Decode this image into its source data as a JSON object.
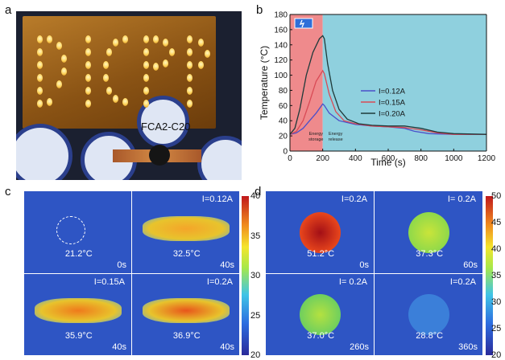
{
  "panels": {
    "a": {
      "letter": "a",
      "label": "FCA2-C20"
    },
    "b": {
      "letter": "b"
    },
    "c": {
      "letter": "c"
    },
    "d": {
      "letter": "d"
    }
  },
  "chart_data": {
    "type": "line",
    "xlabel": "Time (s)",
    "ylabel": "Temperature (°C)",
    "xlim": [
      0,
      1200
    ],
    "ylim": [
      0,
      180
    ],
    "xticks": [
      0,
      200,
      400,
      600,
      800,
      1000,
      1200
    ],
    "yticks": [
      0,
      20,
      40,
      60,
      80,
      100,
      120,
      140,
      160,
      180
    ],
    "regions": [
      {
        "label": "Energy storage",
        "x": [
          0,
          200
        ],
        "color": "#ef8a8c"
      },
      {
        "label": "Energy release",
        "x": [
          200,
          1200
        ],
        "color": "#8fd0de"
      }
    ],
    "series": [
      {
        "name": "I=0.12A",
        "color": "#4b4fc9",
        "points": [
          [
            0,
            22
          ],
          [
            40,
            24
          ],
          [
            80,
            30
          ],
          [
            120,
            40
          ],
          [
            160,
            50
          ],
          [
            200,
            62
          ],
          [
            210,
            60
          ],
          [
            240,
            50
          ],
          [
            300,
            40
          ],
          [
            400,
            35
          ],
          [
            500,
            33
          ],
          [
            600,
            32
          ],
          [
            700,
            30
          ],
          [
            760,
            26
          ],
          [
            850,
            23
          ],
          [
            1000,
            22
          ],
          [
            1200,
            22
          ]
        ]
      },
      {
        "name": "I=0.15A",
        "color": "#d94a55",
        "points": [
          [
            0,
            22
          ],
          [
            40,
            26
          ],
          [
            80,
            40
          ],
          [
            120,
            65
          ],
          [
            160,
            92
          ],
          [
            200,
            106
          ],
          [
            210,
            102
          ],
          [
            240,
            75
          ],
          [
            280,
            52
          ],
          [
            330,
            40
          ],
          [
            400,
            36
          ],
          [
            500,
            33
          ],
          [
            600,
            32
          ],
          [
            700,
            31
          ],
          [
            800,
            28
          ],
          [
            900,
            24
          ],
          [
            1000,
            22
          ],
          [
            1200,
            22
          ]
        ]
      },
      {
        "name": "I=0.20A",
        "color": "#1f3a3a",
        "points": [
          [
            0,
            22
          ],
          [
            30,
            30
          ],
          [
            60,
            55
          ],
          [
            100,
            100
          ],
          [
            140,
            130
          ],
          [
            180,
            148
          ],
          [
            200,
            152
          ],
          [
            210,
            148
          ],
          [
            230,
            115
          ],
          [
            260,
            80
          ],
          [
            300,
            55
          ],
          [
            350,
            42
          ],
          [
            420,
            36
          ],
          [
            500,
            34
          ],
          [
            600,
            33
          ],
          [
            700,
            33
          ],
          [
            800,
            30
          ],
          [
            900,
            25
          ],
          [
            1000,
            23
          ],
          [
            1200,
            22
          ]
        ]
      }
    ]
  },
  "panel_c": {
    "colorbar": {
      "ticks": [
        "40",
        "35",
        "30",
        "25",
        "20"
      ]
    },
    "cells": [
      {
        "temp": "21.2°C",
        "time": "0s",
        "current": ""
      },
      {
        "temp": "32.5°C",
        "time": "40s",
        "current": "I=0.12A"
      },
      {
        "temp": "35.9°C",
        "time": "40s",
        "current": "I=0.15A"
      },
      {
        "temp": "36.9°C",
        "time": "40s",
        "current": "I=0.2A"
      }
    ]
  },
  "panel_d": {
    "colorbar": {
      "ticks": [
        "50",
        "45",
        "40",
        "35",
        "30",
        "25",
        "20"
      ]
    },
    "cells": [
      {
        "temp": "51.2°C",
        "time": "0s",
        "current": "I=0.2A"
      },
      {
        "temp": "37.3°C",
        "time": "60s",
        "current": "I= 0.2A"
      },
      {
        "temp": "37.0°C",
        "time": "260s",
        "current": "I= 0.2A"
      },
      {
        "temp": "28.8°C",
        "time": "360s",
        "current": "I=0.2A"
      }
    ]
  }
}
